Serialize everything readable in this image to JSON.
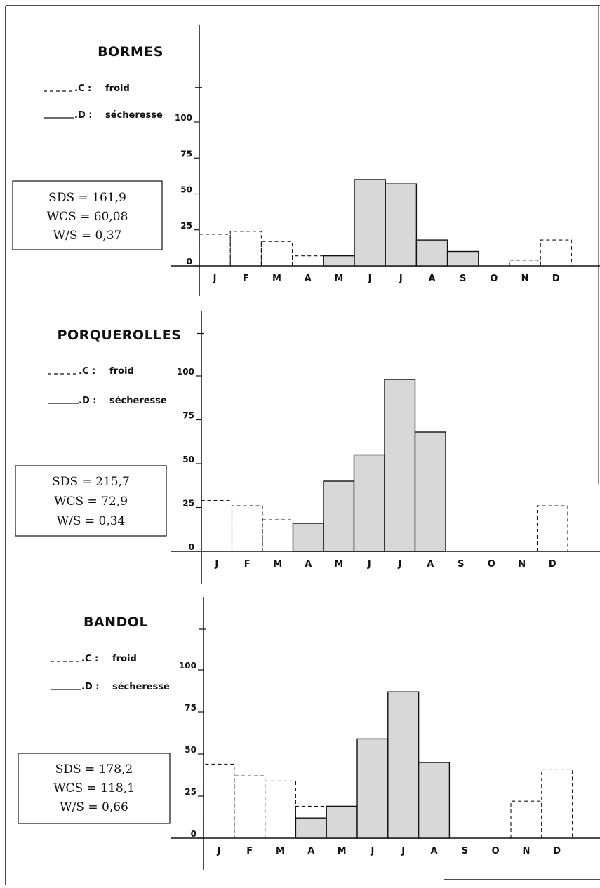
{
  "chart_data": [
    {
      "type": "bar",
      "title": "BORMES",
      "legend": [
        {
          "code": "C",
          "label": "froid",
          "style": "dashed"
        },
        {
          "code": "D",
          "label": "sécheresse",
          "style": "solid"
        }
      ],
      "stats": [
        "SDS = 161,9",
        "WCS = 60,08",
        "W/S = 0,37"
      ],
      "yticks": [
        0,
        25,
        50,
        75,
        100
      ],
      "ylim": [
        0,
        125
      ],
      "categories": [
        "J",
        "F",
        "M",
        "A",
        "M",
        "J",
        "J",
        "A",
        "S",
        "O",
        "N",
        "D"
      ],
      "series": [
        {
          "name": "C : froid",
          "style": "dashed",
          "values": [
            22,
            24,
            17,
            7,
            0,
            0,
            0,
            0,
            0,
            0,
            4,
            18
          ]
        },
        {
          "name": "D : sécheresse",
          "style": "filled",
          "values": [
            0,
            0,
            0,
            0,
            7,
            60,
            57,
            18,
            10,
            0,
            0,
            0
          ]
        }
      ]
    },
    {
      "type": "bar",
      "title": "PORQUEROLLES",
      "legend": [
        {
          "code": "C",
          "label": "froid",
          "style": "dashed"
        },
        {
          "code": "D",
          "label": "sécheresse",
          "style": "solid"
        }
      ],
      "stats": [
        "SDS = 215,7",
        "WCS = 72,9",
        "W/S = 0,34"
      ],
      "yticks": [
        0,
        25,
        50,
        75,
        100
      ],
      "ylim": [
        0,
        125
      ],
      "categories": [
        "J",
        "F",
        "M",
        "A",
        "M",
        "J",
        "J",
        "A",
        "S",
        "O",
        "N",
        "D"
      ],
      "series": [
        {
          "name": "C : froid",
          "style": "dashed",
          "values": [
            29,
            26,
            18,
            0,
            0,
            0,
            0,
            0,
            0,
            0,
            0,
            26
          ]
        },
        {
          "name": "D : sécheresse",
          "style": "filled",
          "values": [
            0,
            0,
            0,
            16,
            40,
            55,
            98,
            68,
            0,
            0,
            0,
            0
          ]
        }
      ]
    },
    {
      "type": "bar",
      "title": "BANDOL",
      "legend": [
        {
          "code": "C",
          "label": "froid",
          "style": "dashed"
        },
        {
          "code": "D",
          "label": "sécheresse",
          "style": "solid"
        }
      ],
      "stats": [
        "SDS = 178,2",
        "WCS = 118,1",
        "W/S = 0,66"
      ],
      "yticks": [
        0,
        25,
        50,
        75,
        100
      ],
      "ylim": [
        0,
        125
      ],
      "categories": [
        "J",
        "F",
        "M",
        "A",
        "M",
        "J",
        "J",
        "A",
        "S",
        "O",
        "N",
        "D"
      ],
      "series": [
        {
          "name": "C : froid",
          "style": "dashed",
          "values": [
            44,
            37,
            34,
            19,
            0,
            0,
            0,
            0,
            0,
            0,
            22,
            41
          ]
        },
        {
          "name": "D : sécheresse",
          "style": "filled",
          "values": [
            0,
            0,
            0,
            12,
            19,
            59,
            87,
            45,
            0,
            0,
            0,
            0
          ]
        }
      ]
    }
  ],
  "colors": {
    "drought_fill": "#d8d8d8",
    "ink": "#111111",
    "background": "#ffffff"
  }
}
